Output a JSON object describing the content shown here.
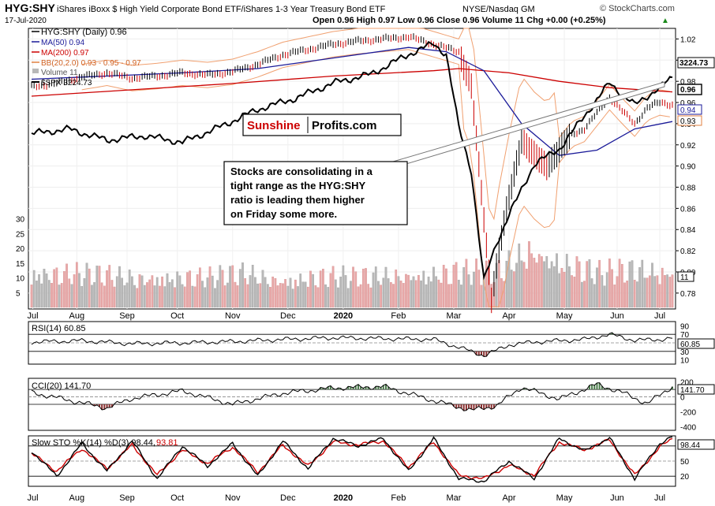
{
  "header": {
    "symbol": "HYG:SHY",
    "description": "iShares iBoxx $ High Yield Corporate Bond ETF/iShares 1-3 Year Treasury Bond ETF",
    "exchange": "NYSE/Nasdaq GM",
    "watermark": "© StockCharts.com",
    "date": "17-Jul-2020",
    "ohlc": "Open 0.96  High 0.97  Low 0.96  Close 0.96  Volume 11  Chg +0.00 (+0.25%)",
    "ohlc_arrow": "▲"
  },
  "legend": {
    "main": "HYG:SHY (Daily) 0.96",
    "ma50": "MA(50) 0.94",
    "ma200": "MA(200) 0.97",
    "bb": "BB(20,2.0) 0.93 - 0.95 - 0.97",
    "volume": "Volume 11",
    "spx": "$SPX 3224.73"
  },
  "logo": {
    "part1": "Sunshine",
    "part2": "Profits.com"
  },
  "annotation": {
    "lines": [
      "Stocks are consolidating in a",
      "tight range as the HYG:SHY",
      "ratio is leading them higher",
      "on Friday some more."
    ]
  },
  "badges": {
    "spx": "3224.73",
    "close": "0.96",
    "ma50": "0.94",
    "bb_lower": "0.93",
    "volume": "11",
    "rsi": "60.85",
    "cci": "141.70",
    "sto": "98.44"
  },
  "panels": {
    "rsi_label": "RSI(14) 60.85",
    "cci_label": "CCI(20) 141.70",
    "sto_label_main": "Slow STO %K(14) %D(3) 98.44,",
    "sto_label_d": "93.81"
  },
  "colors": {
    "ratio_up": "#000000",
    "ratio_down": "#cc0000",
    "ma50": "#1a1a99",
    "ma200": "#cc0000",
    "bb": "#f0a070",
    "spx": "#000000",
    "vol_up": "#b8b8b8",
    "vol_down": "#e8a8a8",
    "rsi_pos": "#4a7a4a",
    "rsi_neg": "#8a3030",
    "sto_k": "#000000",
    "sto_d": "#cc0000",
    "logo_red": "#cc0000"
  },
  "chart_data": [
    {
      "type": "line",
      "title": "HYG:SHY",
      "x_tick_labels": [
        "Jul",
        "Aug",
        "Sep",
        "Oct",
        "Nov",
        "Dec",
        "2020",
        "Feb",
        "Mar",
        "Apr",
        "May",
        "Jun",
        "Jul"
      ],
      "y_tick_labels": [
        "1.02",
        "1.00",
        "0.98",
        "0.96",
        "0.94",
        "0.92",
        "0.90",
        "0.88",
        "0.86",
        "0.84",
        "0.82",
        "0.80",
        "0.78"
      ],
      "ylim": [
        0.765,
        1.03
      ],
      "vol_tick_labels": [
        "30",
        "25",
        "20",
        "15",
        "10",
        "5"
      ],
      "series": [
        {
          "name": "HYG:SHY",
          "x": [
            0,
            10,
            20,
            30,
            40,
            50,
            60,
            70,
            80,
            90,
            100,
            110,
            120,
            130,
            140,
            150,
            160,
            170,
            175,
            180,
            183,
            186,
            190,
            195,
            200,
            205,
            210,
            215,
            220,
            225,
            230,
            235,
            240,
            245,
            250,
            255
          ],
          "values": [
            0.975,
            0.978,
            0.984,
            0.988,
            0.983,
            0.985,
            0.988,
            0.986,
            0.989,
            0.996,
            1.005,
            1.01,
            1.015,
            1.018,
            1.02,
            1.022,
            1.015,
            1.008,
            0.975,
            0.85,
            0.775,
            0.82,
            0.87,
            0.925,
            0.91,
            0.9,
            0.915,
            0.93,
            0.935,
            0.95,
            0.965,
            0.952,
            0.94,
            0.955,
            0.96,
            0.958
          ]
        },
        {
          "name": "MA(50)",
          "x": [
            0,
            30,
            60,
            90,
            120,
            150,
            165,
            180,
            195,
            210,
            225,
            240,
            255
          ],
          "values": [
            0.982,
            0.985,
            0.988,
            0.992,
            1.002,
            1.012,
            1.008,
            0.99,
            0.94,
            0.91,
            0.915,
            0.935,
            0.942
          ]
        },
        {
          "name": "MA(200)",
          "x": [
            0,
            40,
            80,
            120,
            160,
            170,
            190,
            210,
            230,
            255
          ],
          "values": [
            0.966,
            0.972,
            0.978,
            0.985,
            0.99,
            0.992,
            0.988,
            0.98,
            0.974,
            0.97
          ]
        },
        {
          "name": "$SPX",
          "x": [
            0,
            15,
            30,
            45,
            60,
            75,
            90,
            105,
            120,
            135,
            150,
            160,
            165,
            170,
            175,
            180,
            185,
            190,
            200,
            210,
            220,
            230,
            240,
            250,
            255
          ],
          "values": [
            2970,
            2990,
            2940,
            2960,
            2930,
            3000,
            3080,
            3130,
            3200,
            3240,
            3330,
            3380,
            3330,
            3000,
            2800,
            2300,
            2470,
            2600,
            2830,
            2900,
            3050,
            3200,
            3100,
            3180,
            3224.73
          ]
        }
      ],
      "volume": {
        "peak_values": [
          17,
          16,
          15,
          14,
          15,
          14,
          16,
          13,
          15,
          14,
          15,
          16,
          17,
          16,
          28,
          21,
          16,
          18,
          17
        ]
      }
    },
    {
      "type": "line",
      "title": "RSI(14) 60.85",
      "y_tick_labels": [
        "90",
        "70",
        "50",
        "30",
        "10"
      ],
      "ylim": [
        0,
        100
      ],
      "series": [
        {
          "name": "RSI(14)",
          "x": [
            0,
            20,
            40,
            60,
            80,
            100,
            120,
            140,
            160,
            175,
            180,
            190,
            200,
            210,
            220,
            230,
            240,
            250,
            255
          ],
          "values": [
            52,
            55,
            48,
            50,
            53,
            58,
            62,
            60,
            58,
            30,
            20,
            45,
            52,
            55,
            58,
            70,
            56,
            58,
            60.85
          ]
        }
      ]
    },
    {
      "type": "line",
      "title": "CCI(20) 141.70",
      "y_tick_labels": [
        "200",
        "100",
        "0",
        "-200",
        "-400"
      ],
      "ylim": [
        -450,
        250
      ],
      "series": [
        {
          "name": "CCI(20)",
          "x": [
            0,
            20,
            30,
            40,
            60,
            80,
            100,
            120,
            140,
            160,
            175,
            185,
            195,
            210,
            225,
            235,
            245,
            255
          ],
          "values": [
            60,
            -80,
            -150,
            -20,
            80,
            -100,
            50,
            120,
            140,
            -50,
            -180,
            -120,
            130,
            -30,
            170,
            60,
            -90,
            141.7
          ]
        }
      ]
    },
    {
      "type": "line",
      "title": "Slow STO %K(14) %D(3)",
      "y_tick_labels": [
        "80",
        "50",
        "20"
      ],
      "ylim": [
        0,
        100
      ],
      "series": [
        {
          "name": "%K",
          "x": [
            0,
            10,
            20,
            30,
            40,
            50,
            60,
            70,
            80,
            90,
            100,
            110,
            120,
            130,
            140,
            150,
            160,
            170,
            180,
            190,
            200,
            210,
            220,
            230,
            240,
            250,
            255
          ],
          "values": [
            70,
            20,
            85,
            30,
            90,
            15,
            80,
            40,
            85,
            20,
            90,
            35,
            95,
            80,
            95,
            30,
            95,
            15,
            10,
            50,
            15,
            95,
            70,
            96,
            15,
            85,
            98.44
          ]
        },
        {
          "name": "%D",
          "x": [
            0,
            10,
            20,
            30,
            40,
            50,
            60,
            70,
            80,
            90,
            100,
            110,
            120,
            130,
            140,
            150,
            160,
            170,
            180,
            190,
            200,
            210,
            220,
            230,
            240,
            250,
            255
          ],
          "values": [
            65,
            30,
            75,
            35,
            82,
            22,
            72,
            45,
            78,
            28,
            82,
            40,
            88,
            82,
            90,
            38,
            88,
            22,
            15,
            42,
            22,
            88,
            72,
            92,
            22,
            78,
            93.81
          ]
        }
      ]
    }
  ]
}
